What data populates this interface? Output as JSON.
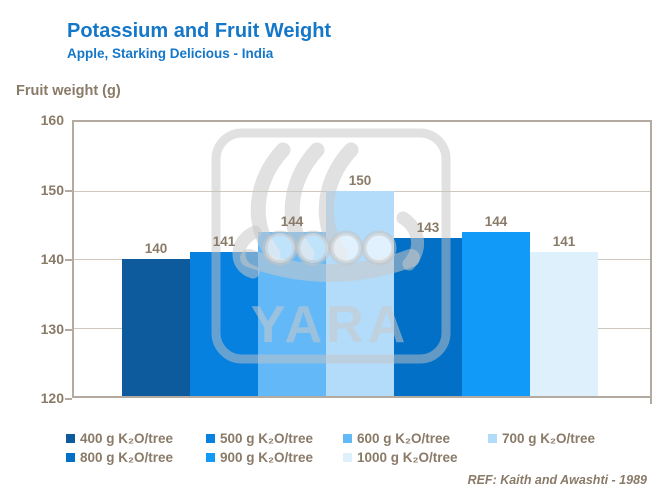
{
  "header": {
    "title": "Potassium and Fruit Weight",
    "subtitle": "Apple, Starking Delicious - India"
  },
  "footer": {
    "ref": "REF: Kaith and Awashti - 1989"
  },
  "watermark": {
    "text": "YARA"
  },
  "colors": {
    "title_blue": "#1577c8",
    "axis_text": "#8a7a68",
    "frame": "#b3aba0",
    "gridline": "#cfc8bf"
  },
  "chart_data": {
    "type": "bar",
    "title": "Potassium and Fruit Weight",
    "subtitle": "Apple, Starking Delicious - India",
    "xlabel": "",
    "ylabel": "Fruit weight (g)",
    "ylim": [
      120,
      160
    ],
    "yticks": [
      160,
      150,
      140,
      130,
      120
    ],
    "gridlines_at": [
      150,
      140,
      130
    ],
    "grid": "horizontal",
    "legend_position": "bottom",
    "data_labels": true,
    "categories": [
      "400 g K₂O/tree",
      "500 g K₂O/tree",
      "600 g K₂O/tree",
      "700 g K₂O/tree",
      "800 g K₂O/tree",
      "900 g K₂O/tree",
      "1000 g K₂O/tree"
    ],
    "values": [
      140,
      141,
      144,
      150,
      143,
      144,
      141
    ],
    "bar_colors": [
      "#0d5a9d",
      "#0681e0",
      "#63b8f8",
      "#b3dbfa",
      "#0170c6",
      "#129af8",
      "#def0fb"
    ]
  }
}
